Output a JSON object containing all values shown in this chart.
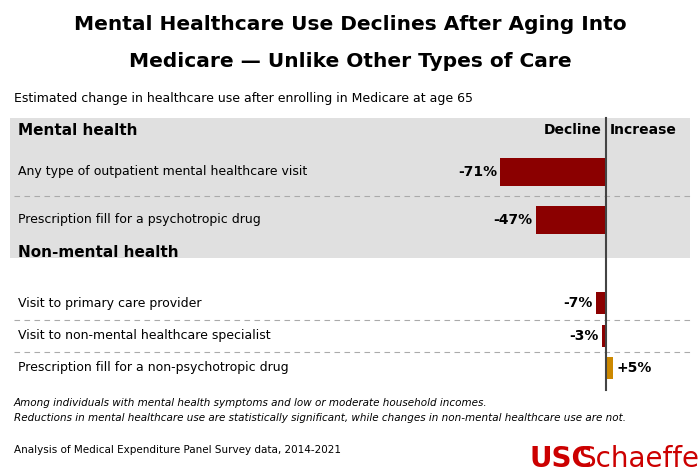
{
  "title_line1": "Mental Healthcare Use Declines After Aging Into",
  "title_line2": "Medicare — Unlike Other Types of Care",
  "subtitle": "Estimated change in healthcare use after enrolling in Medicare at age 65",
  "section1_label": "Mental health",
  "section2_label": "Non-mental health",
  "categories": [
    "Any type of outpatient mental healthcare visit",
    "Prescription fill for a psychotropic drug",
    "Visit to primary care provider",
    "Visit to non-mental healthcare specialist",
    "Prescription fill for a non-psychotropic drug"
  ],
  "values": [
    -71,
    -47,
    -7,
    -3,
    5
  ],
  "value_labels": [
    "-71%",
    "-47%",
    "-7%",
    "-3%",
    "+5%"
  ],
  "bar_colors": [
    "#8B0000",
    "#8B0000",
    "#8B0000",
    "#8B0000",
    "#CC8800"
  ],
  "header_decline": "Decline",
  "header_increase": "Increase",
  "bg_color_mental": "#E0E0E0",
  "footnote1": "Among individuals with mental health symptoms and low or moderate household incomes.",
  "footnote2": "Reductions in mental healthcare use are statistically significant, while changes in non-mental healthcare use are not.",
  "source": "Analysis of Medical Expenditure Panel Survey data, 2014-2021",
  "usc_color": "#CC0000"
}
